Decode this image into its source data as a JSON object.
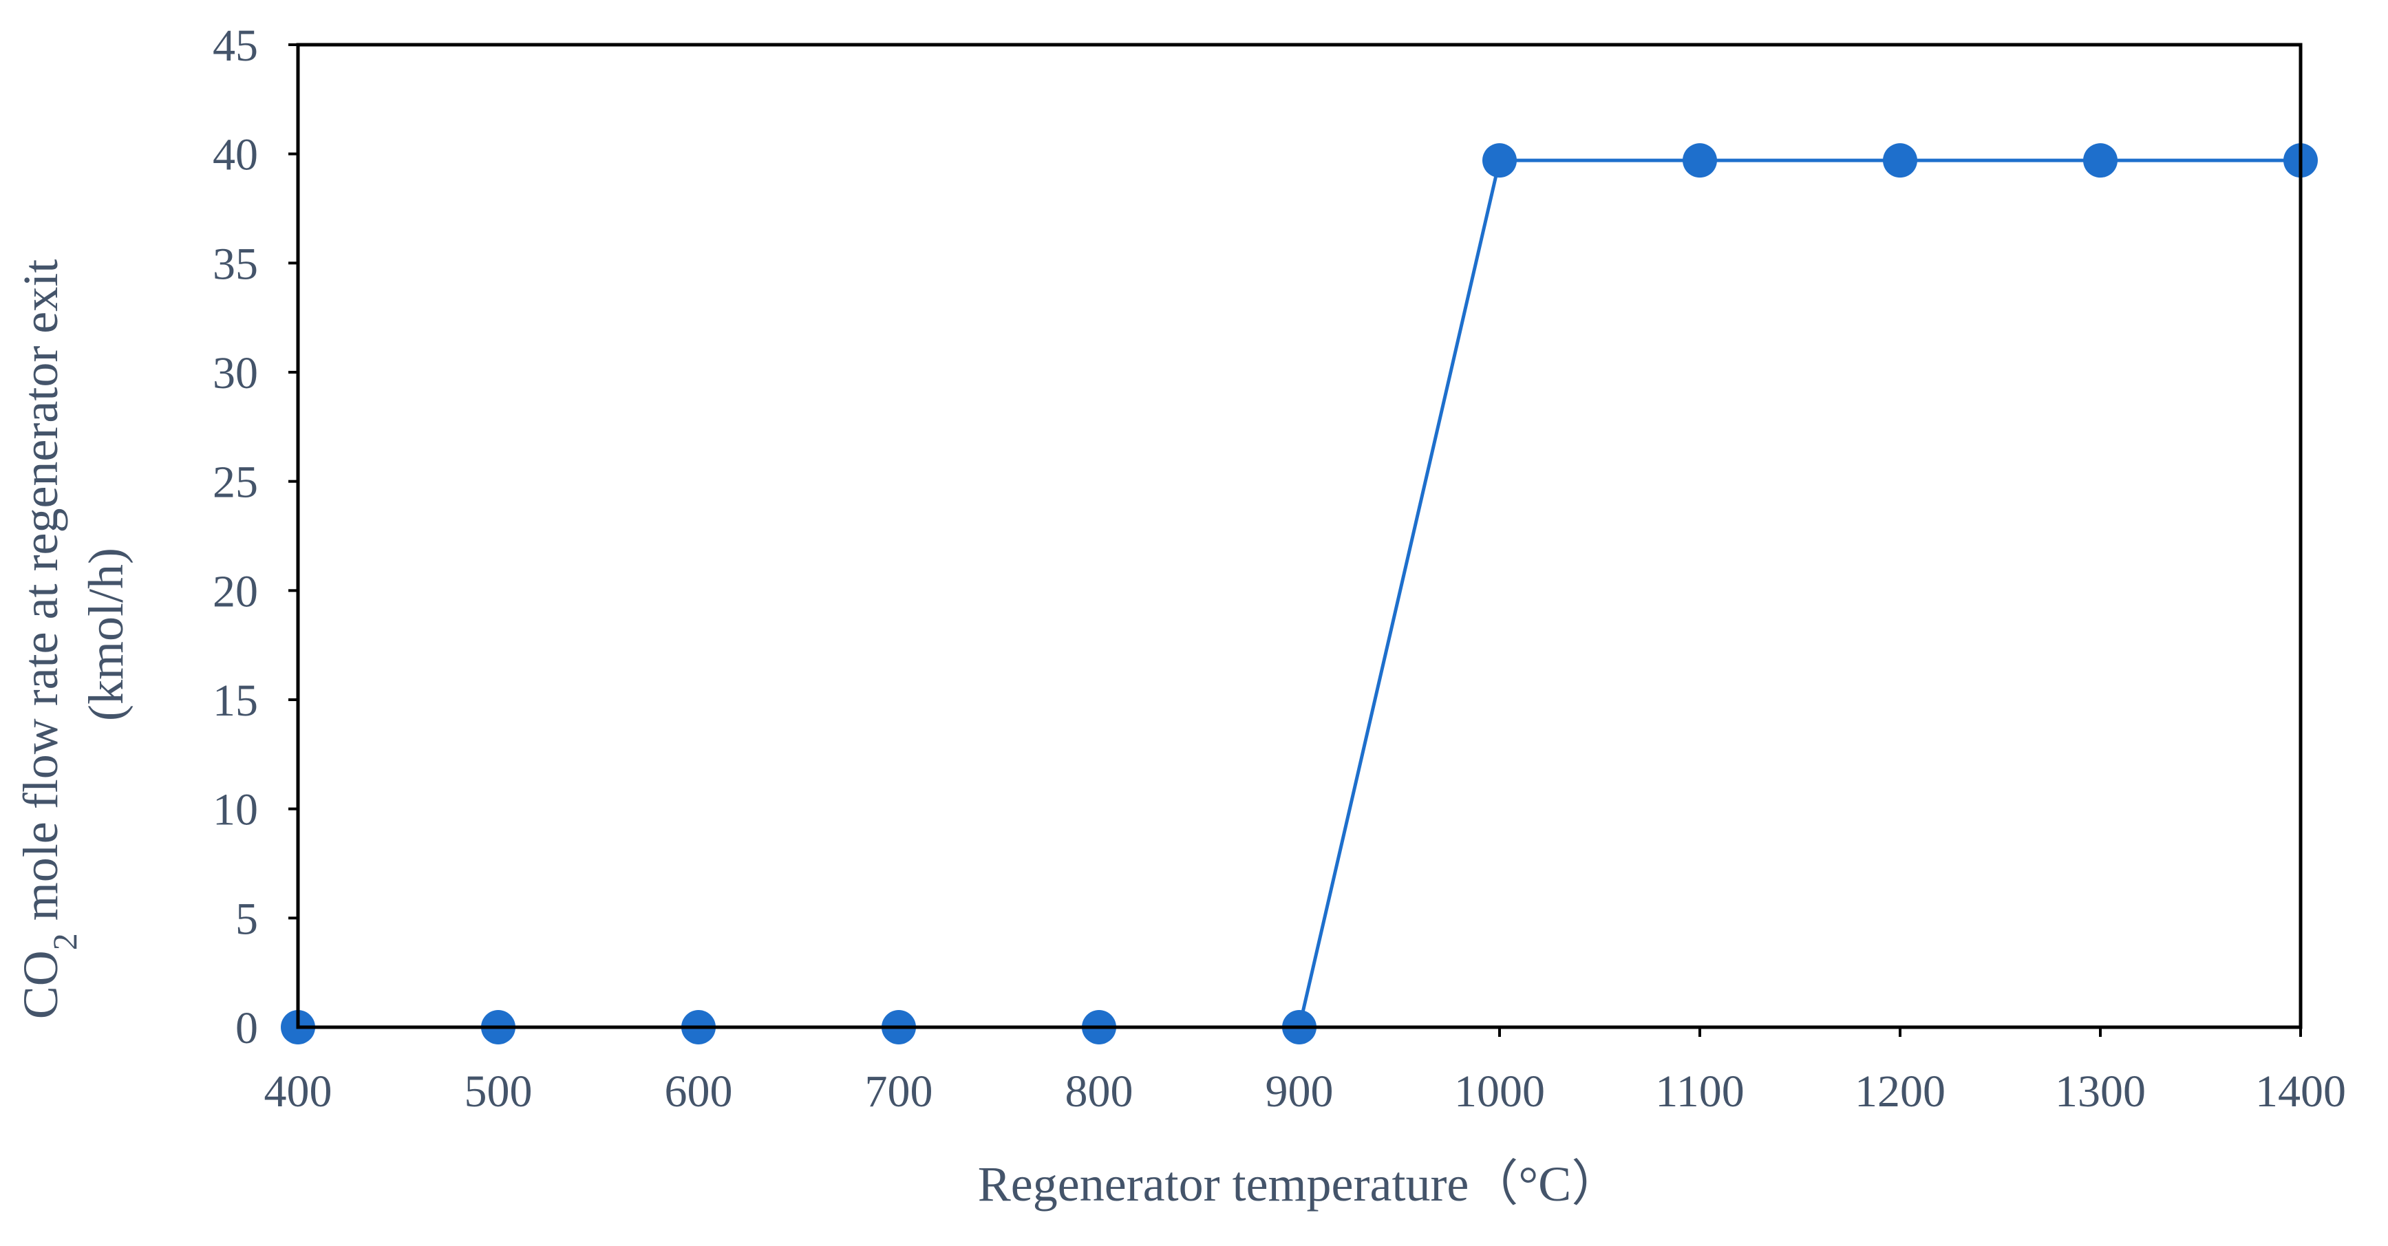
{
  "chart_data": {
    "type": "line",
    "x": [
      400,
      500,
      600,
      700,
      800,
      900,
      1000,
      1100,
      1200,
      1300,
      1400
    ],
    "series": [
      {
        "values": [
          0,
          0,
          0,
          0,
          0,
          0,
          39.7,
          39.7,
          39.7,
          39.7,
          39.7
        ],
        "color": "#1e6fcc"
      }
    ],
    "xlabel": "Regenerator temperature（°C）",
    "ylabel": {
      "line1_prefix": "CO",
      "line1_sub": "2",
      "line1_suffix": " mole flow rate at regenerator exit",
      "line2": "(kmol/h)"
    },
    "xlim": [
      400,
      1400
    ],
    "ylim": [
      0,
      45
    ],
    "x_ticks": [
      "400",
      "500",
      "600",
      "700",
      "800",
      "900",
      "1000",
      "1100",
      "1200",
      "1300",
      "1400"
    ],
    "y_ticks": [
      "0",
      "5",
      "10",
      "15",
      "20",
      "25",
      "30",
      "35",
      "40",
      "45"
    ],
    "grid": false,
    "legend": "none",
    "marker": "circle"
  }
}
